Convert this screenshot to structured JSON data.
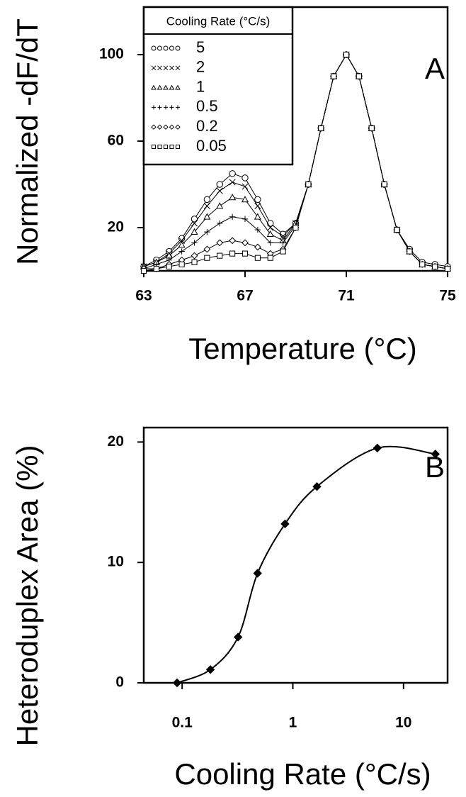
{
  "chart_data": [
    {
      "type": "line",
      "panel_label": "A",
      "xlabel": "Temperature (°C)",
      "ylabel": "Normalized -dF/dT",
      "legend_title": "Cooling Rate (°C/s)",
      "legend": "upper left",
      "x": [
        63,
        63.5,
        64,
        64.5,
        65,
        65.5,
        66,
        66.5,
        67,
        67.5,
        68,
        68.5,
        69,
        69.5,
        70,
        70.5,
        71,
        71.5,
        72,
        72.5,
        73,
        73.5,
        74,
        74.5,
        75
      ],
      "series": [
        {
          "name": "5",
          "marker": "circle",
          "color": "#000000",
          "values": [
            2,
            5,
            9,
            15,
            24,
            33,
            40,
            45,
            43,
            33,
            22,
            17,
            22,
            40,
            66,
            90,
            100,
            90,
            66,
            40,
            19,
            10,
            4,
            3,
            2
          ]
        },
        {
          "name": "2",
          "marker": "x",
          "color": "#000000",
          "values": [
            2,
            4,
            8,
            14,
            22,
            30,
            37,
            41,
            39,
            30,
            20,
            16,
            22,
            40,
            66,
            90,
            100,
            90,
            66,
            40,
            19,
            9,
            3,
            2,
            1
          ]
        },
        {
          "name": "1",
          "marker": "triangle",
          "color": "#000000",
          "values": [
            2,
            4,
            7,
            12,
            18,
            25,
            30,
            34,
            33,
            25,
            17,
            14,
            22,
            40,
            66,
            90,
            100,
            90,
            66,
            40,
            19,
            9,
            3,
            2,
            1
          ]
        },
        {
          "name": "0.5",
          "marker": "plus",
          "color": "#000000",
          "values": [
            1,
            3,
            5,
            9,
            13,
            18,
            22,
            25,
            24,
            19,
            13,
            13,
            21,
            40,
            66,
            90,
            100,
            90,
            66,
            40,
            19,
            9,
            3,
            2,
            1
          ]
        },
        {
          "name": "0.2",
          "marker": "diamond",
          "color": "#000000",
          "values": [
            1,
            1,
            3,
            5,
            7,
            10,
            13,
            14,
            13,
            11,
            8,
            10,
            20,
            40,
            66,
            90,
            100,
            90,
            66,
            40,
            19,
            9,
            3,
            2,
            1
          ]
        },
        {
          "name": "0.05",
          "marker": "square",
          "color": "#000000",
          "values": [
            0,
            1,
            2,
            3,
            4,
            6,
            7,
            8,
            8,
            6,
            6,
            9,
            20,
            40,
            66,
            90,
            100,
            90,
            66,
            40,
            19,
            9,
            3,
            2,
            1
          ]
        }
      ],
      "xlim": [
        63,
        75
      ],
      "xticks": [
        63,
        67,
        71,
        75
      ],
      "ylim": [
        0,
        122
      ],
      "yticks": [
        20,
        60,
        100
      ]
    },
    {
      "type": "line",
      "panel_label": "B",
      "xlabel": "Cooling Rate (°C/s)",
      "ylabel": "Heteroduplex Area (%)",
      "xscale": "log",
      "x": [
        0.09,
        0.18,
        0.32,
        0.48,
        0.85,
        1.65,
        5.8,
        19.4
      ],
      "values": [
        0,
        1.1,
        3.8,
        9.1,
        13.2,
        16.3,
        19.5,
        19.0
      ],
      "marker": "filled-diamond",
      "color": "#000000",
      "xlim": [
        0.045,
        25
      ],
      "xticks": [
        0.1,
        1,
        10
      ],
      "ylim": [
        0,
        21.2
      ],
      "yticks": [
        0,
        10,
        20
      ]
    }
  ]
}
